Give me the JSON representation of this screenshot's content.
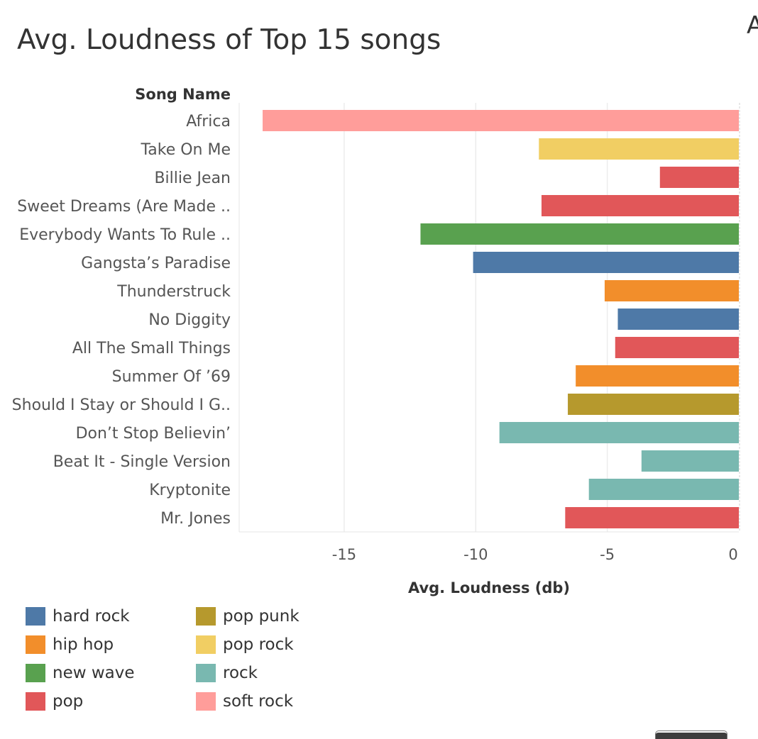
{
  "title": "Avg. Loudness of Top 15 songs",
  "clipped_title": "A",
  "chart_data": {
    "type": "bar",
    "orientation": "horizontal",
    "title": "Avg. Loudness of Top 15 songs",
    "category_axis_label": "Song Name",
    "xlabel": "Avg. Loudness (db)",
    "xlim": [
      -19,
      0
    ],
    "xticks": [
      -15,
      -10,
      -5,
      0
    ],
    "grid": true,
    "categories": [
      "Africa",
      "Take On Me",
      "Billie Jean",
      "Sweet Dreams (Are Made ..",
      "Everybody Wants To Rule ..",
      "Gangsta’s Paradise",
      "Thunderstruck",
      "No Diggity",
      "All The Small Things",
      "Summer Of ’69",
      "Should I Stay or Should I G..",
      "Don’t Stop Believin’",
      "Beat It - Single Version",
      "Kryptonite",
      "Mr. Jones"
    ],
    "values": [
      -18.1,
      -7.6,
      -3.0,
      -7.5,
      -12.1,
      -10.1,
      -5.1,
      -4.6,
      -4.7,
      -6.2,
      -6.5,
      -9.1,
      -3.7,
      -5.7,
      -6.6
    ],
    "genres": [
      "soft rock",
      "pop rock",
      "pop",
      "pop",
      "new wave",
      "hard rock",
      "hip hop",
      "hard rock",
      "pop",
      "hip hop",
      "pop punk",
      "rock",
      "rock",
      "rock",
      "pop"
    ],
    "legend": [
      {
        "label": "hard rock",
        "color": "#4e79a7"
      },
      {
        "label": "hip hop",
        "color": "#f28e2b"
      },
      {
        "label": "new wave",
        "color": "#59a14f"
      },
      {
        "label": "pop",
        "color": "#e15759"
      },
      {
        "label": "pop punk",
        "color": "#b6992d"
      },
      {
        "label": "pop rock",
        "color": "#f1ce63"
      },
      {
        "label": "rock",
        "color": "#79b8b0"
      },
      {
        "label": "soft rock",
        "color": "#ff9d9a"
      }
    ],
    "legend_placement": "bottom-left"
  }
}
